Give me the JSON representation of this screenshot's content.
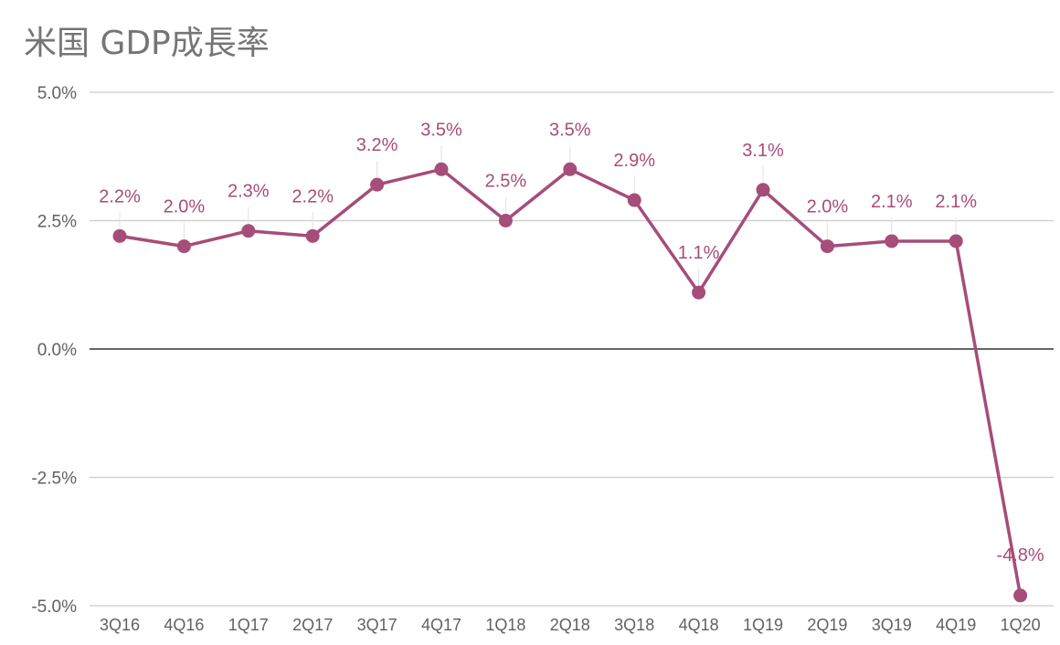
{
  "chart_data": {
    "type": "line",
    "title": "米国 GDP成長率",
    "xlabel": "",
    "ylabel": "",
    "categories": [
      "3Q16",
      "4Q16",
      "1Q17",
      "2Q17",
      "3Q17",
      "4Q17",
      "1Q18",
      "2Q18",
      "3Q18",
      "4Q18",
      "1Q19",
      "2Q19",
      "3Q19",
      "4Q19",
      "1Q20"
    ],
    "series": [
      {
        "values": [
          2.2,
          2.0,
          2.3,
          2.2,
          3.2,
          3.5,
          2.5,
          3.5,
          2.9,
          1.1,
          3.1,
          2.0,
          2.1,
          2.1,
          -4.8
        ],
        "data_labels": [
          "2.2%",
          "2.0%",
          "2.3%",
          "2.2%",
          "3.2%",
          "3.5%",
          "2.5%",
          "3.5%",
          "2.9%",
          "1.1%",
          "3.1%",
          "2.0%",
          "2.1%",
          "2.1%",
          "-4.8%"
        ]
      }
    ],
    "ylim": [
      -5.0,
      5.0
    ],
    "y_ticks": [
      5.0,
      2.5,
      0.0,
      -2.5,
      -5.0
    ],
    "y_tick_labels": [
      "5.0%",
      "2.5%",
      "0.0%",
      "-2.5%",
      "-5.0%"
    ],
    "grid": true,
    "legend": "none",
    "colors": {
      "series": "#a64d79",
      "grid": "#cccccc",
      "zero_line": "#333333",
      "axis_text": "#616161",
      "title": "#757575"
    }
  }
}
